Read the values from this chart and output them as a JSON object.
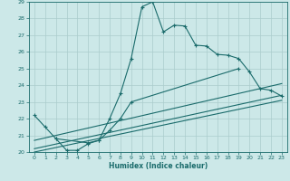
{
  "title": "",
  "xlabel": "Humidex (Indice chaleur)",
  "ylabel": "",
  "bg_color": "#cce8e8",
  "grid_color": "#aacccc",
  "line_color": "#1a6b6b",
  "xlim": [
    -0.5,
    23.5
  ],
  "ylim": [
    20,
    29
  ],
  "xticks": [
    0,
    1,
    2,
    3,
    4,
    5,
    6,
    7,
    8,
    9,
    10,
    11,
    12,
    13,
    14,
    15,
    16,
    17,
    18,
    19,
    20,
    21,
    22,
    23
  ],
  "yticks": [
    20,
    21,
    22,
    23,
    24,
    25,
    26,
    27,
    28,
    29
  ],
  "series": [
    {
      "x": [
        0,
        1,
        2,
        3,
        4,
        5,
        6,
        7,
        8,
        9,
        10,
        11,
        12,
        13,
        14,
        15,
        16,
        17,
        18,
        19,
        20,
        21,
        22,
        23
      ],
      "y": [
        22.2,
        21.5,
        20.8,
        20.1,
        20.1,
        20.5,
        20.7,
        22.0,
        23.5,
        25.6,
        28.7,
        29.0,
        27.2,
        27.6,
        27.55,
        26.4,
        26.35,
        25.85,
        25.8,
        25.6,
        24.8,
        23.8,
        23.7,
        23.35
      ],
      "marker": true
    },
    {
      "x": [
        2,
        5,
        6,
        7,
        8,
        9,
        19
      ],
      "y": [
        20.8,
        20.55,
        20.7,
        21.3,
        22.0,
        23.0,
        25.0
      ],
      "marker": true
    },
    {
      "x": [
        0,
        23
      ],
      "y": [
        20.7,
        24.1
      ],
      "marker": false
    },
    {
      "x": [
        0,
        23
      ],
      "y": [
        20.2,
        23.4
      ],
      "marker": false
    },
    {
      "x": [
        0,
        23
      ],
      "y": [
        20.0,
        23.1
      ],
      "marker": false
    }
  ]
}
